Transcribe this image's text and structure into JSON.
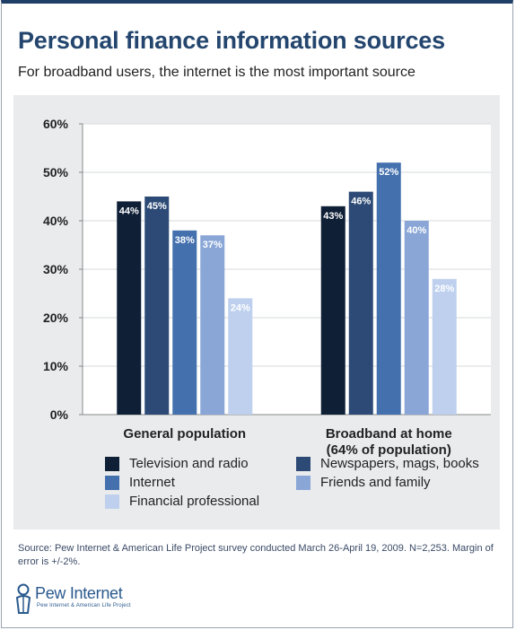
{
  "header": {
    "title": "Personal finance information sources",
    "subtitle": "For broadband users, the internet is the most important source"
  },
  "chart_data": {
    "type": "bar",
    "categories": [
      "General population",
      "Broadband at home (64% of population)"
    ],
    "category_lines": [
      [
        "General population"
      ],
      [
        "Broadband at home",
        "(64% of population)"
      ]
    ],
    "series": [
      {
        "name": "Television and radio",
        "color": "#0e1f36",
        "values": [
          44,
          43
        ]
      },
      {
        "name": "Newspapers, mags, books",
        "color": "#2c4a75",
        "values": [
          45,
          46
        ]
      },
      {
        "name": "Internet",
        "color": "#4470ae",
        "values": [
          38,
          52
        ]
      },
      {
        "name": "Friends and family",
        "color": "#89a6d6",
        "values": [
          37,
          40
        ]
      },
      {
        "name": "Financial professional",
        "color": "#bed0ee",
        "values": [
          24,
          28
        ]
      }
    ],
    "data_labels": [
      [
        "44%",
        "45%",
        "38%",
        "37%",
        "24%"
      ],
      [
        "43%",
        "46%",
        "52%",
        "40%",
        "28%"
      ]
    ],
    "ylim": [
      0,
      60
    ],
    "yticks": [
      0,
      10,
      20,
      30,
      40,
      50,
      60
    ],
    "ytick_labels": [
      "0%",
      "10%",
      "20%",
      "30%",
      "40%",
      "50%",
      "60%"
    ],
    "grid": true,
    "legend_position": "bottom"
  },
  "footer": {
    "source": "Source: Pew Internet & American Life Project survey conducted March 26-April 19, 2009. N=2,253. Margin of error is +/-2%.",
    "logo_name": "Pew Internet",
    "logo_tagline": "Pew Internet & American Life Project"
  }
}
